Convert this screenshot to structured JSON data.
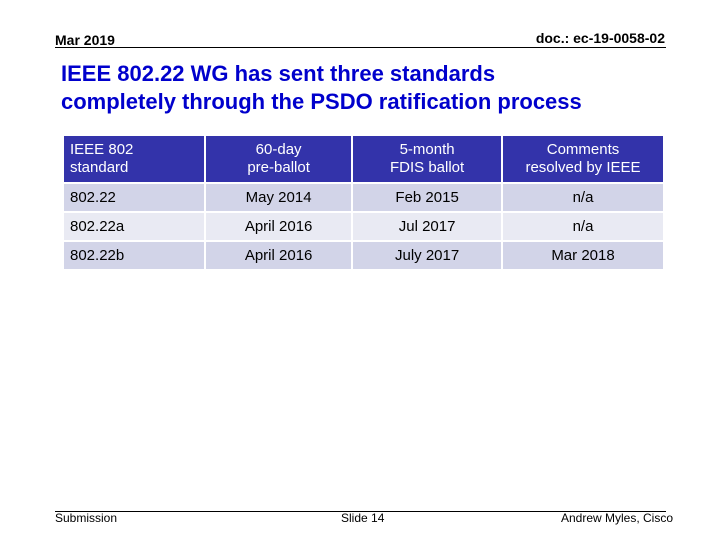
{
  "header": {
    "date": "Mar 2019",
    "doc_id": "doc.: ec-19-0058-02"
  },
  "title": {
    "line1": "IEEE 802.22 WG has sent three standards",
    "line2": "completely through the PSDO ratification process"
  },
  "table": {
    "headers": [
      {
        "line1": "IEEE 802",
        "line2": "standard"
      },
      {
        "line1": "60-day",
        "line2": "pre-ballot"
      },
      {
        "line1": "5-month",
        "line2": "FDIS ballot"
      },
      {
        "line1": "Comments",
        "line2": "resolved by IEEE"
      }
    ],
    "rows": [
      [
        "802.22",
        "May 2014",
        "Feb 2015",
        "n/a"
      ],
      [
        "802.22a",
        "April 2016",
        "Jul 2017",
        "n/a"
      ],
      [
        "802.22b",
        "April 2016",
        "July 2017",
        "Mar 2018"
      ]
    ]
  },
  "footer": {
    "left": "Submission",
    "center": "Slide 14",
    "right": "Andrew Myles, Cisco"
  }
}
